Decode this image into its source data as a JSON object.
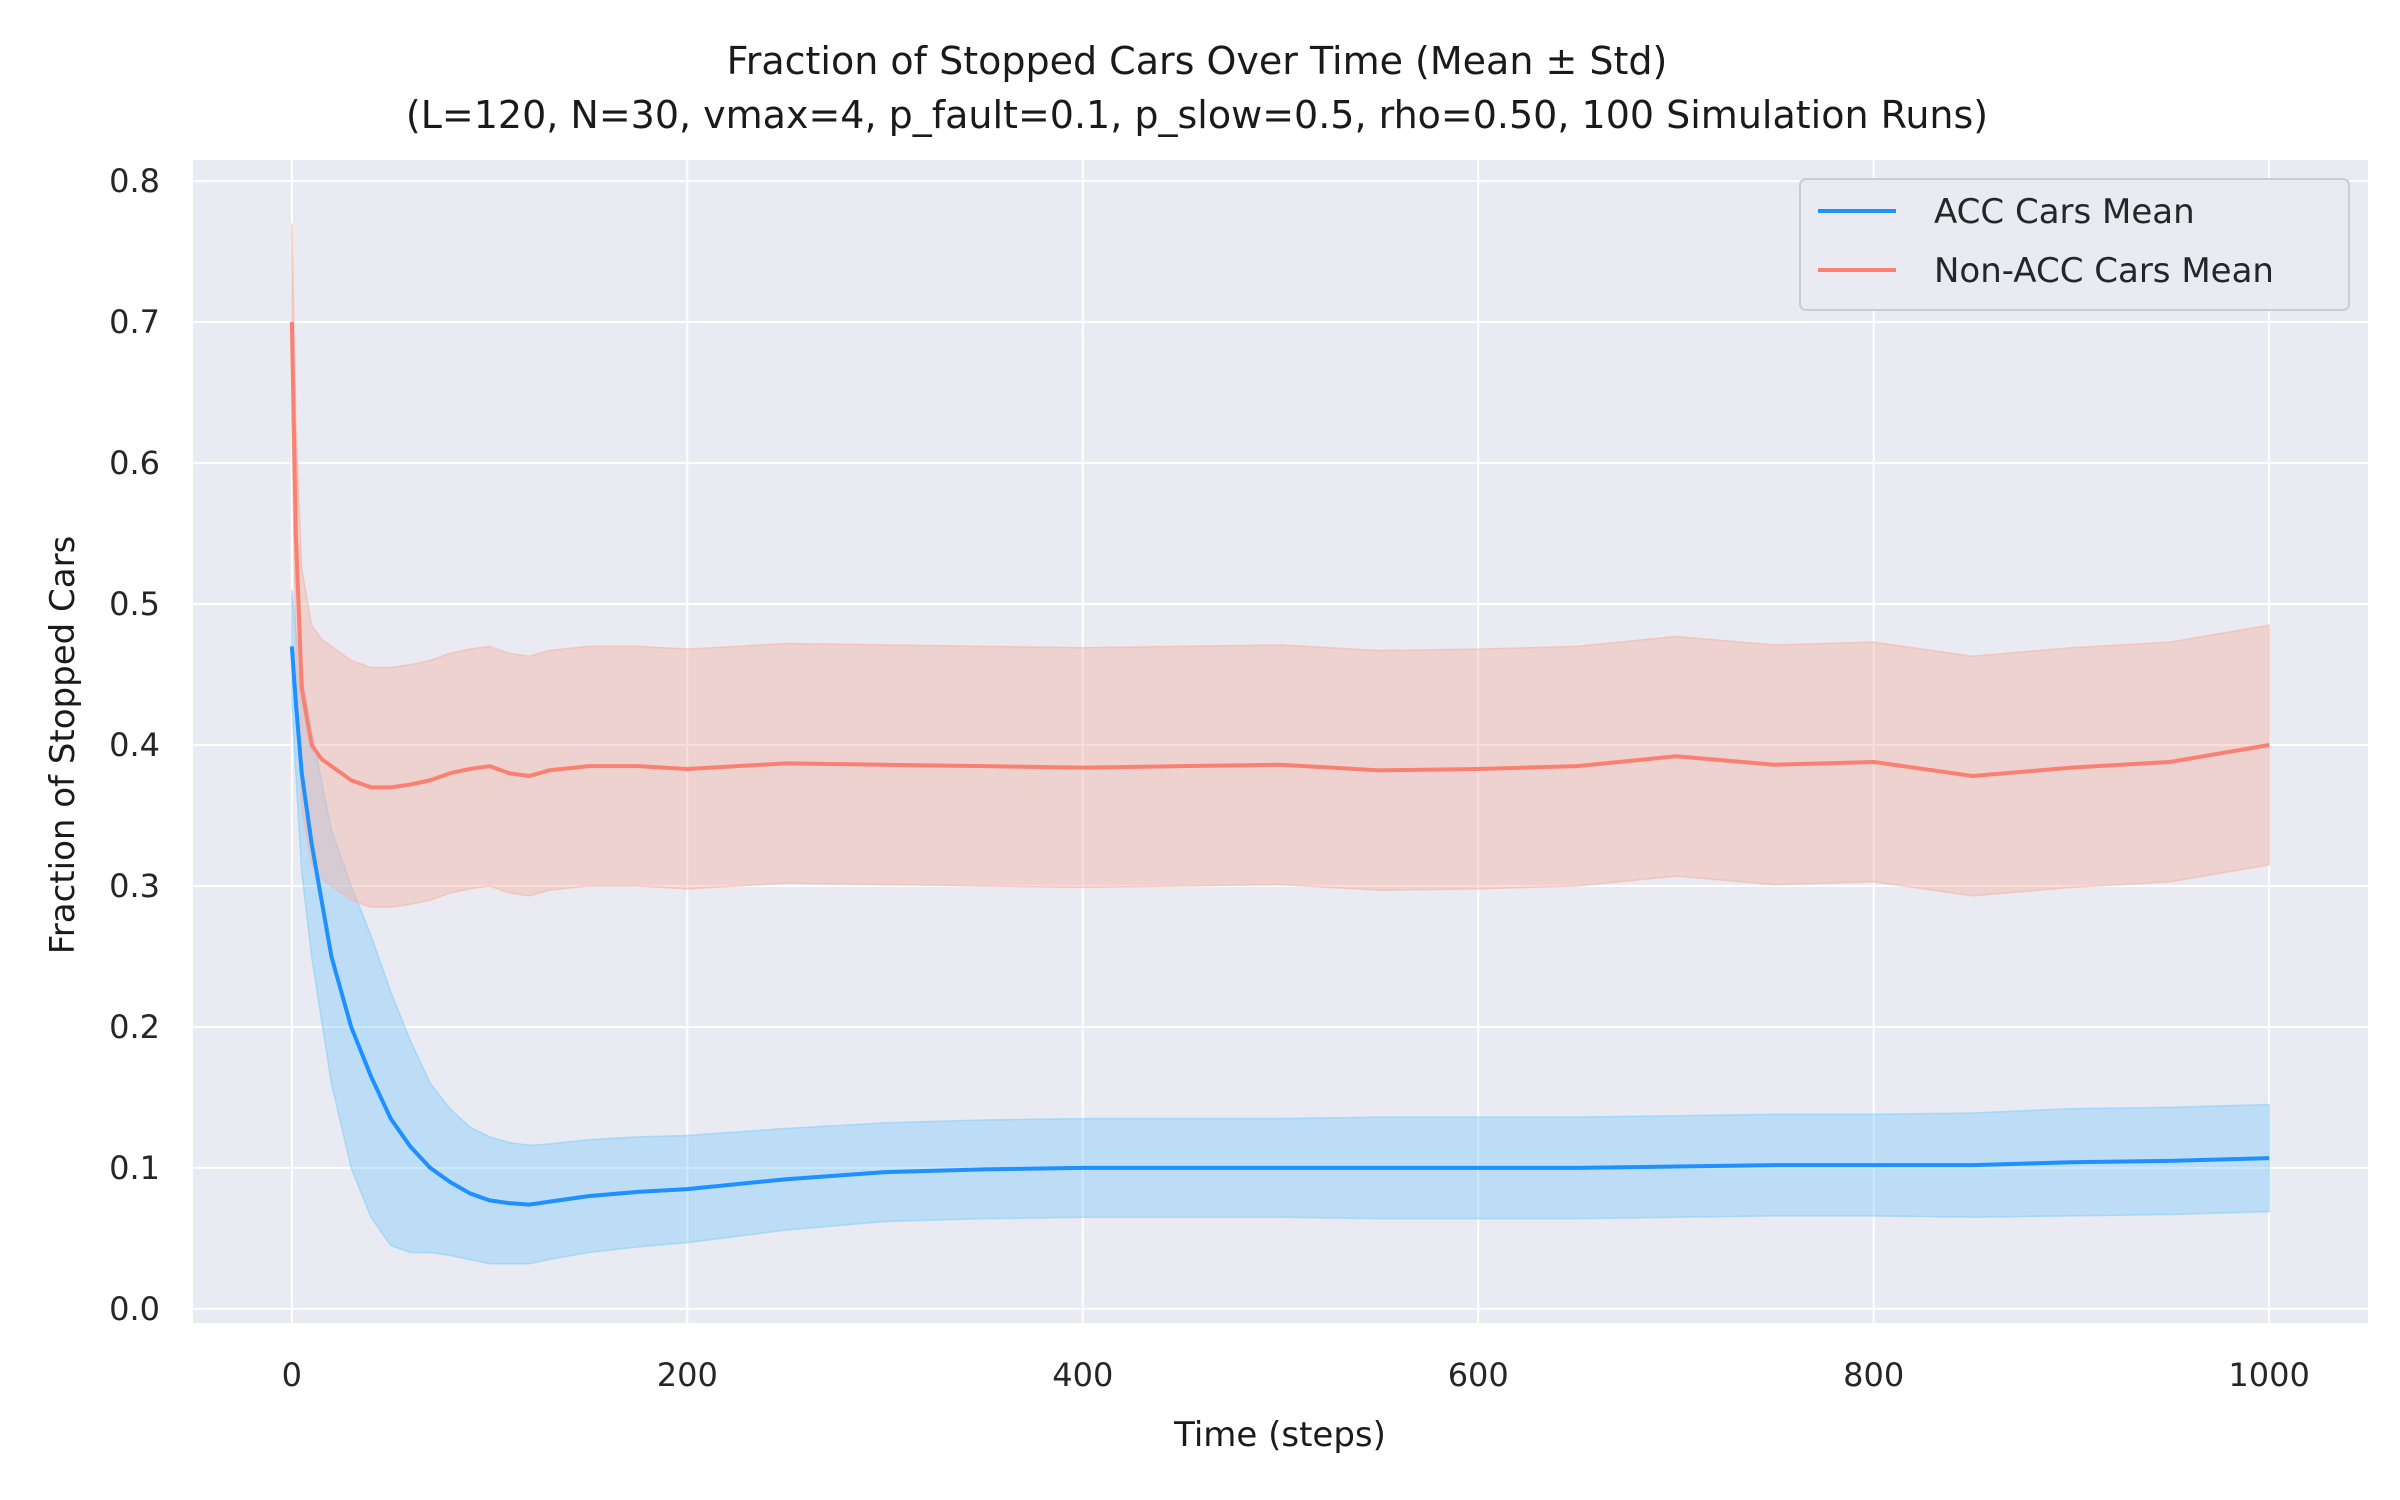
{
  "chart_data": {
    "type": "line",
    "title": "Fraction of Stopped Cars Over Time (Mean ± Std)",
    "subtitle": "(L=120, N=30, vmax=4, p_fault=0.1, p_slow=0.5, rho=0.50, 100 Simulation Runs)",
    "xlabel": "Time (steps)",
    "ylabel": "Fraction of Stopped Cars",
    "xlim": [
      -50,
      1050
    ],
    "ylim": [
      -0.01,
      0.815
    ],
    "xticks": [
      0,
      200,
      400,
      600,
      800,
      1000
    ],
    "yticks": [
      0.0,
      0.1,
      0.2,
      0.3,
      0.4,
      0.5,
      0.6,
      0.7,
      0.8
    ],
    "grid": true,
    "legend_position": "top-right",
    "background": "#eaeaf2",
    "series": [
      {
        "name": "ACC Cars Mean",
        "color": "#1e90ff",
        "band_color": "#87cefa",
        "x": [
          0,
          2,
          5,
          10,
          15,
          20,
          30,
          40,
          50,
          60,
          70,
          80,
          90,
          100,
          110,
          120,
          130,
          150,
          175,
          200,
          250,
          300,
          350,
          400,
          450,
          500,
          550,
          600,
          650,
          700,
          750,
          800,
          850,
          900,
          950,
          1000
        ],
        "mean": [
          0.47,
          0.43,
          0.38,
          0.33,
          0.29,
          0.25,
          0.2,
          0.165,
          0.135,
          0.115,
          0.1,
          0.09,
          0.082,
          0.077,
          0.075,
          0.074,
          0.076,
          0.08,
          0.083,
          0.085,
          0.092,
          0.097,
          0.099,
          0.1,
          0.1,
          0.1,
          0.1,
          0.1,
          0.1,
          0.101,
          0.102,
          0.102,
          0.102,
          0.104,
          0.105,
          0.107
        ],
        "std": [
          0.04,
          0.05,
          0.07,
          0.08,
          0.085,
          0.09,
          0.1,
          0.1,
          0.09,
          0.075,
          0.06,
          0.052,
          0.047,
          0.045,
          0.043,
          0.042,
          0.041,
          0.04,
          0.039,
          0.038,
          0.036,
          0.035,
          0.035,
          0.035,
          0.035,
          0.035,
          0.036,
          0.036,
          0.036,
          0.036,
          0.036,
          0.036,
          0.037,
          0.038,
          0.038,
          0.038
        ]
      },
      {
        "name": "Non-ACC Cars Mean",
        "color": "#fa8072",
        "band_color": "#f4b6a6",
        "x": [
          0,
          2,
          5,
          10,
          15,
          20,
          30,
          40,
          50,
          60,
          70,
          80,
          90,
          100,
          110,
          120,
          130,
          150,
          175,
          200,
          250,
          300,
          350,
          400,
          450,
          500,
          550,
          600,
          650,
          700,
          750,
          800,
          850,
          900,
          950,
          1000
        ],
        "mean": [
          0.7,
          0.55,
          0.44,
          0.4,
          0.39,
          0.385,
          0.375,
          0.37,
          0.37,
          0.372,
          0.375,
          0.38,
          0.383,
          0.385,
          0.38,
          0.378,
          0.382,
          0.385,
          0.385,
          0.383,
          0.387,
          0.386,
          0.385,
          0.384,
          0.385,
          0.386,
          0.382,
          0.383,
          0.385,
          0.392,
          0.386,
          0.388,
          0.378,
          0.384,
          0.388,
          0.4
        ],
        "std": [
          0.07,
          0.08,
          0.085,
          0.085,
          0.085,
          0.085,
          0.085,
          0.085,
          0.085,
          0.085,
          0.085,
          0.085,
          0.085,
          0.085,
          0.085,
          0.085,
          0.085,
          0.085,
          0.085,
          0.085,
          0.085,
          0.085,
          0.085,
          0.085,
          0.085,
          0.085,
          0.085,
          0.085,
          0.085,
          0.085,
          0.085,
          0.085,
          0.085,
          0.085,
          0.085,
          0.085
        ]
      }
    ]
  }
}
